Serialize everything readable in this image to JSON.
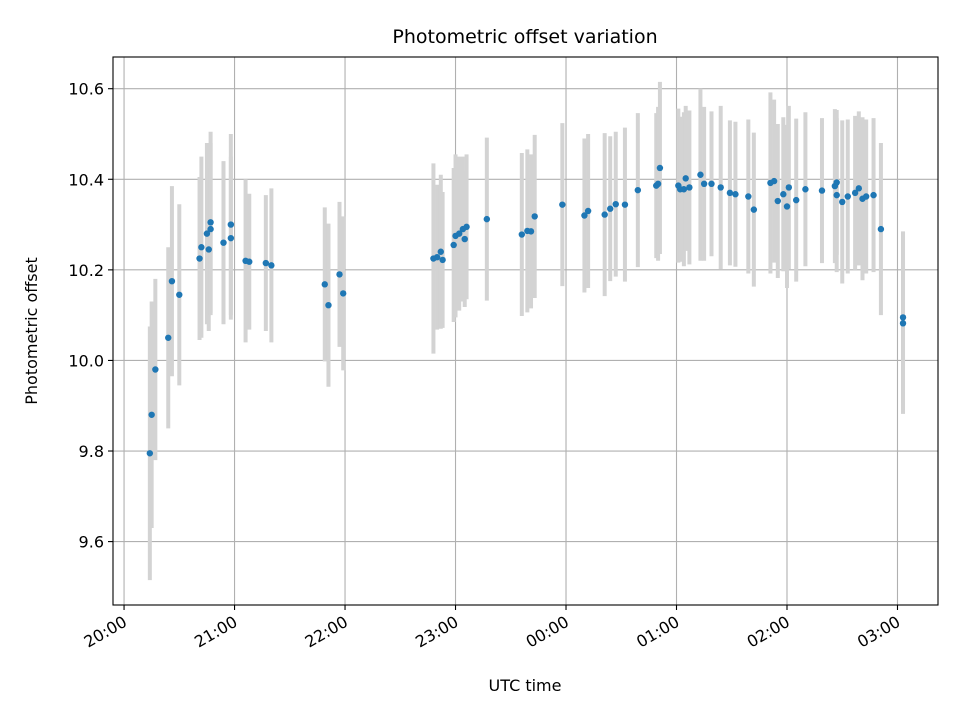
{
  "chart_data": {
    "type": "scatter",
    "title": "Photometric offset variation",
    "xlabel": "UTC time",
    "ylabel": "Photometric offset",
    "grid": true,
    "x_unit": "hours",
    "xlim": [
      "19:54",
      "03:22"
    ],
    "ylim": [
      9.46,
      10.67
    ],
    "x_ticks": [
      "20:00",
      "21:00",
      "22:00",
      "23:00",
      "00:00",
      "01:00",
      "02:00",
      "03:00"
    ],
    "y_ticks": [
      "9.6",
      "9.8",
      "10.0",
      "10.2",
      "10.4",
      "10.6"
    ],
    "colors": {
      "marker": "#1f77b4",
      "error_bar": "#d3d3d3",
      "grid": "#b0b0b0"
    },
    "series": [
      {
        "points": [
          [
            "20:14",
            9.795,
            0.28
          ],
          [
            "20:15",
            9.88,
            0.25
          ],
          [
            "20:17",
            9.98,
            0.2
          ],
          [
            "20:24",
            10.05,
            0.2
          ],
          [
            "20:26",
            10.175,
            0.21
          ],
          [
            "20:30",
            10.145,
            0.2
          ],
          [
            "20:41",
            10.225,
            0.18
          ],
          [
            "20:42",
            10.25,
            0.2
          ],
          [
            "20:45",
            10.28,
            0.2
          ],
          [
            "20:46",
            10.245,
            0.18
          ],
          [
            "20:47",
            10.29,
            0.19
          ],
          [
            "20:47",
            10.305,
            0.2
          ],
          [
            "20:54",
            10.26,
            0.18
          ],
          [
            "20:58",
            10.3,
            0.2
          ],
          [
            "20:58",
            10.27,
            0.18
          ],
          [
            "21:06",
            10.22,
            0.18
          ],
          [
            "21:08",
            10.218,
            0.15
          ],
          [
            "21:17",
            10.215,
            0.15
          ],
          [
            "21:20",
            10.21,
            0.17
          ],
          [
            "21:49",
            10.168,
            0.17
          ],
          [
            "21:51",
            10.122,
            0.18
          ],
          [
            "21:57",
            10.19,
            0.16
          ],
          [
            "21:59",
            10.148,
            0.17
          ],
          [
            "22:48",
            10.225,
            0.21
          ],
          [
            "22:50",
            10.228,
            0.16
          ],
          [
            "22:52",
            10.24,
            0.17
          ],
          [
            "22:53",
            10.222,
            0.15
          ],
          [
            "22:59",
            10.255,
            0.17
          ],
          [
            "23:00",
            10.275,
            0.18
          ],
          [
            "23:02",
            10.28,
            0.17
          ],
          [
            "23:04",
            10.29,
            0.16
          ],
          [
            "23:05",
            10.268,
            0.15
          ],
          [
            "23:06",
            10.295,
            0.16
          ],
          [
            "23:17",
            10.312,
            0.18
          ],
          [
            "23:36",
            10.278,
            0.18
          ],
          [
            "23:39",
            10.286,
            0.18
          ],
          [
            "23:41",
            10.285,
            0.17
          ],
          [
            "23:43",
            10.318,
            0.18
          ],
          [
            "23:58",
            10.344,
            0.18
          ],
          [
            "00:10",
            10.32,
            0.17
          ],
          [
            "00:12",
            10.33,
            0.17
          ],
          [
            "00:21",
            10.322,
            0.18
          ],
          [
            "00:24",
            10.335,
            0.16
          ],
          [
            "00:27",
            10.345,
            0.16
          ],
          [
            "00:32",
            10.344,
            0.17
          ],
          [
            "00:39",
            10.376,
            0.17
          ],
          [
            "00:49",
            10.386,
            0.16
          ],
          [
            "00:50",
            10.39,
            0.17
          ],
          [
            "00:51",
            10.425,
            0.19
          ],
          [
            "01:01",
            10.386,
            0.17
          ],
          [
            "01:02",
            10.378,
            0.16
          ],
          [
            "01:04",
            10.378,
            0.17
          ],
          [
            "01:05",
            10.402,
            0.16
          ],
          [
            "01:07",
            10.382,
            0.17
          ],
          [
            "01:13",
            10.41,
            0.19
          ],
          [
            "01:15",
            10.39,
            0.17
          ],
          [
            "01:19",
            10.39,
            0.16
          ],
          [
            "01:24",
            10.382,
            0.18
          ],
          [
            "01:29",
            10.37,
            0.16
          ],
          [
            "01:32",
            10.367,
            0.16
          ],
          [
            "01:39",
            10.362,
            0.17
          ],
          [
            "01:42",
            10.333,
            0.17
          ],
          [
            "01:51",
            10.392,
            0.2
          ],
          [
            "01:53",
            10.396,
            0.18
          ],
          [
            "01:55",
            10.352,
            0.17
          ],
          [
            "01:58",
            10.367,
            0.17
          ],
          [
            "02:00",
            10.34,
            0.18
          ],
          [
            "02:01",
            10.382,
            0.18
          ],
          [
            "02:05",
            10.354,
            0.18
          ],
          [
            "02:10",
            10.378,
            0.17
          ],
          [
            "02:19",
            10.375,
            0.16
          ],
          [
            "02:26",
            10.385,
            0.17
          ],
          [
            "02:27",
            10.393,
            0.16
          ],
          [
            "02:27",
            10.365,
            0.17
          ],
          [
            "02:30",
            10.35,
            0.18
          ],
          [
            "02:33",
            10.362,
            0.17
          ],
          [
            "02:37",
            10.37,
            0.17
          ],
          [
            "02:39",
            10.38,
            0.17
          ],
          [
            "02:41",
            10.357,
            0.18
          ],
          [
            "02:43",
            10.362,
            0.17
          ],
          [
            "02:47",
            10.365,
            0.17
          ],
          [
            "02:51",
            10.29,
            0.19
          ],
          [
            "03:03",
            10.095,
            0.19
          ],
          [
            "03:03",
            10.082,
            0.2
          ]
        ]
      }
    ]
  }
}
